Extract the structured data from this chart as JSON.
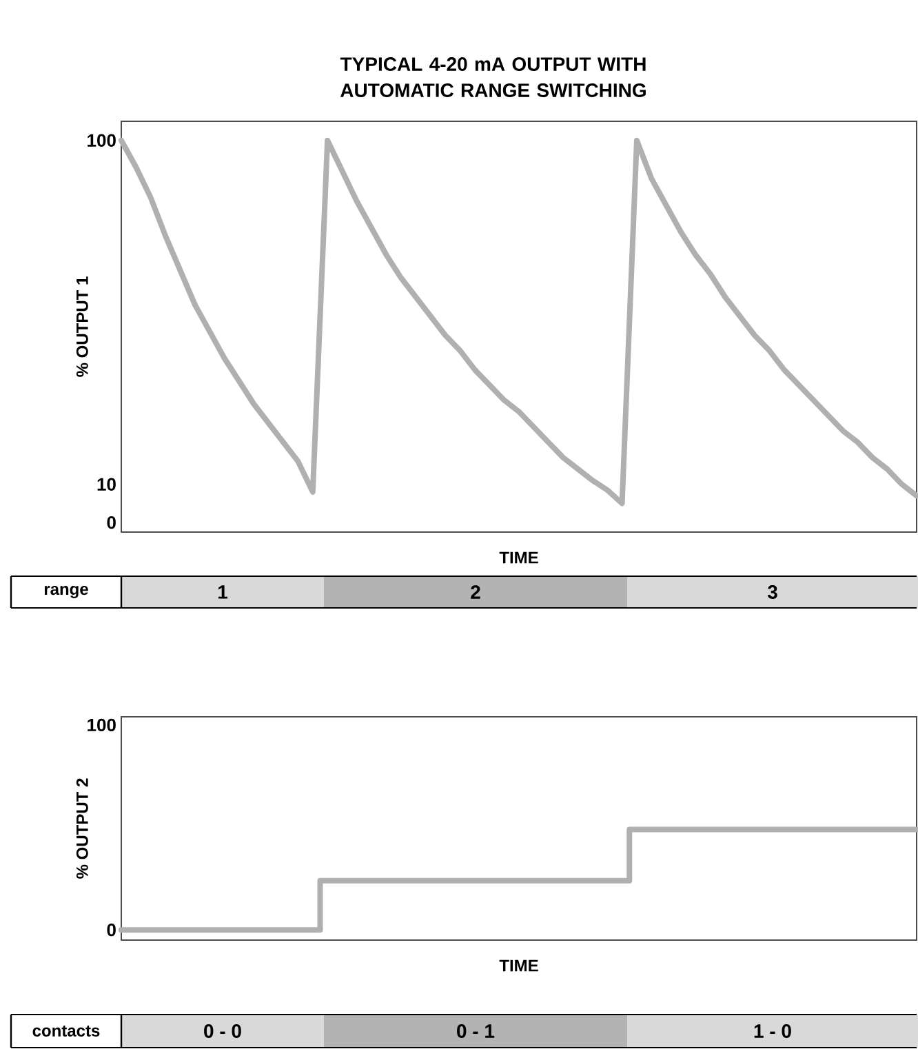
{
  "chart_data": [
    {
      "type": "line",
      "title": "TYPICAL 4-20 mA OUTPUT WITH AUTOMATIC RANGE SWITCHING",
      "xlabel": "TIME",
      "ylabel": "% OUTPUT 1",
      "categories": [
        null,
        null,
        null,
        null,
        null,
        null,
        null,
        null,
        null,
        null,
        null,
        null,
        null,
        null,
        null,
        null,
        null,
        null,
        null,
        null,
        null,
        null,
        null,
        null,
        null,
        null,
        null,
        null,
        null,
        null,
        null,
        null,
        null,
        null,
        null,
        null,
        null,
        null,
        null,
        null,
        null,
        null,
        null,
        null,
        null,
        null,
        null,
        null,
        null,
        null,
        null,
        null,
        null,
        null,
        null
      ],
      "values": [
        100,
        93,
        85,
        75,
        66,
        57,
        50,
        43,
        37,
        31,
        26,
        21,
        16,
        8,
        100,
        92,
        84,
        77,
        70,
        64,
        59,
        54,
        49,
        45,
        40,
        36,
        32,
        29,
        25,
        21,
        17,
        14,
        11,
        8.5,
        5,
        100,
        90,
        83,
        76,
        70,
        65,
        59,
        54,
        49,
        45,
        40,
        36,
        32,
        28,
        24,
        21,
        17,
        14,
        10,
        7
      ],
      "color": "#b0b0b0",
      "ylim": [
        -2.5,
        105
      ],
      "yticks": [
        0,
        10,
        100
      ],
      "tick_labels": "y",
      "annotations": [
        "range",
        "1",
        "2",
        "3"
      ]
    },
    {
      "type": "step",
      "xlabel": "TIME",
      "ylabel": "% OUTPUT 2",
      "categories": [
        null,
        null,
        null,
        null,
        null,
        null,
        null,
        null,
        null,
        null,
        null,
        null,
        null,
        null,
        null,
        null,
        null,
        null,
        null,
        null,
        null,
        null,
        null,
        null,
        null,
        null,
        null,
        null,
        null,
        null,
        null,
        null,
        null,
        null,
        null,
        null,
        null,
        null,
        null,
        null,
        null,
        null,
        null,
        null,
        null,
        null,
        null,
        null,
        null,
        null,
        null,
        null,
        null,
        null,
        null
      ],
      "values": [
        0,
        0,
        0,
        0,
        0,
        0,
        0,
        0,
        0,
        0,
        0,
        0,
        0,
        0,
        24,
        24,
        24,
        24,
        24,
        24,
        24,
        24,
        24,
        24,
        24,
        24,
        24,
        24,
        24,
        24,
        24,
        24,
        24,
        24,
        24,
        49,
        49,
        49,
        49,
        49,
        49,
        49,
        49,
        49,
        49,
        49,
        49,
        49,
        49,
        49,
        49,
        49,
        49,
        49,
        49
      ],
      "color": "#b0b0b0",
      "ylim": [
        -5,
        104
      ],
      "yticks": [
        0,
        100
      ],
      "tick_labels": "y",
      "annotations": [
        "contacts",
        "0 - 0",
        "0 - 1",
        "1 - 0"
      ]
    }
  ]
}
